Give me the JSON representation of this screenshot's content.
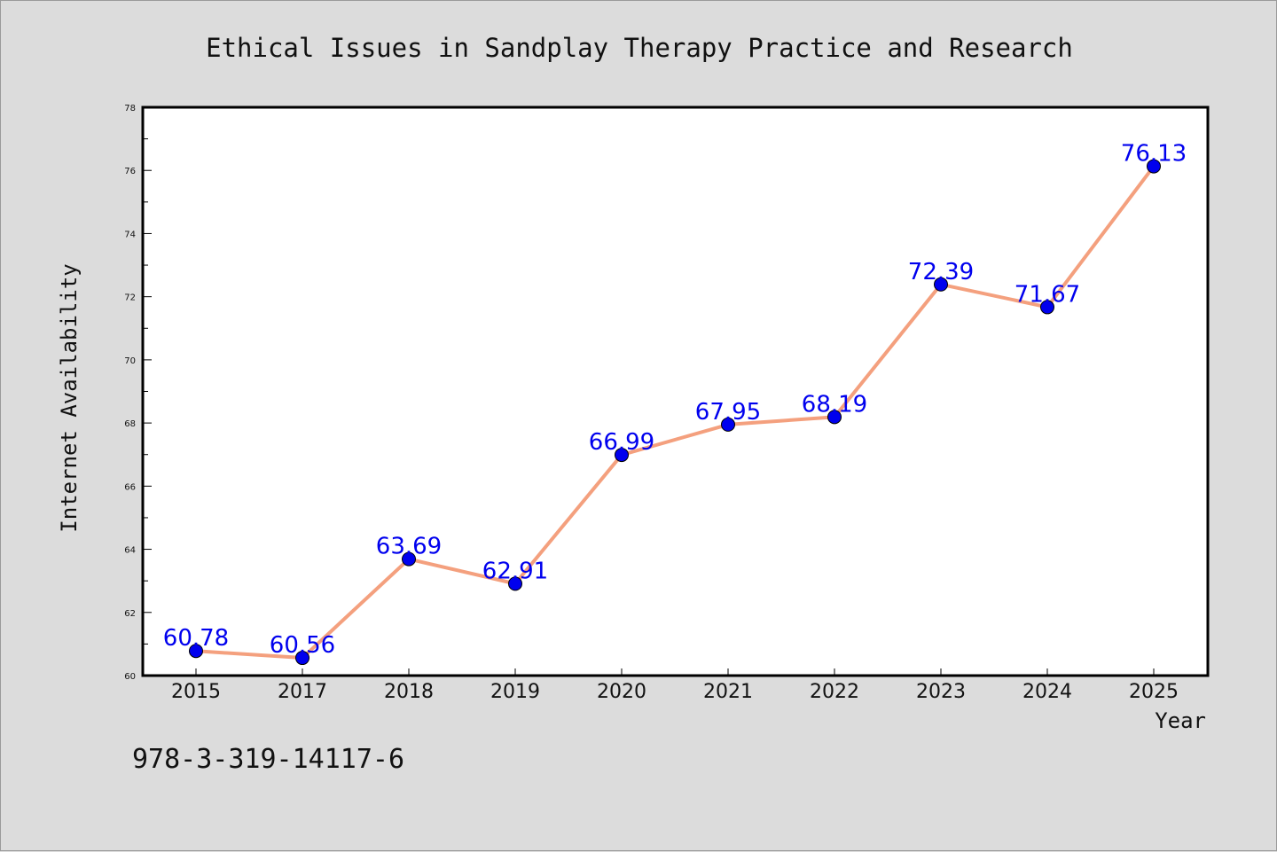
{
  "chart_data": {
    "type": "line",
    "title": "Ethical Issues in Sandplay Therapy Practice and Research",
    "xlabel": "Year",
    "ylabel": "Internet Availability",
    "categories": [
      "2015",
      "2017",
      "2018",
      "2019",
      "2020",
      "2021",
      "2022",
      "2023",
      "2024",
      "2025"
    ],
    "values": [
      60.78,
      60.56,
      63.69,
      62.91,
      66.99,
      67.95,
      68.19,
      72.39,
      71.67,
      76.13
    ],
    "data_labels": [
      "60.78",
      "60.56",
      "63.69",
      "62.91",
      "66.99",
      "67.95",
      "68.19",
      "72.39",
      "71.67",
      "76.13"
    ],
    "ylim": [
      60,
      78
    ],
    "yticks": [
      "60",
      "62",
      "64",
      "66",
      "68",
      "70",
      "72",
      "74",
      "76",
      "78"
    ],
    "grid": false,
    "line_color": "#f4a07e",
    "marker_color": "#0000ee",
    "label_color": "#0000ee",
    "plot_background": "#ffffff",
    "figure_background": "#dcdcdc"
  },
  "annotation": "978-3-319-14117-6"
}
